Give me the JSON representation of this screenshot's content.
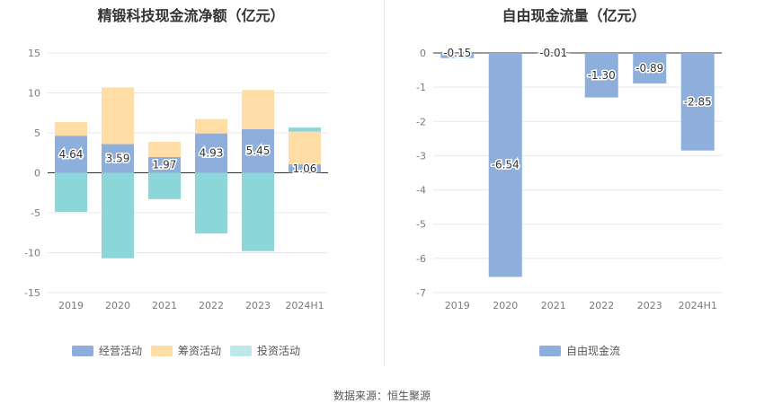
{
  "source_note": "数据来源：恒生聚源",
  "colors": {
    "operating": "#8EAEDC",
    "financing": "#FFDDA5",
    "investing": "#8AD6D8",
    "fcf": "#8EAEDC",
    "grid": "#E8E8E8",
    "axis": "#333333"
  },
  "chart_data": [
    {
      "type": "bar",
      "stacked": true,
      "title": "精锻科技现金流净额（亿元）",
      "categories": [
        "2019",
        "2020",
        "2021",
        "2022",
        "2023",
        "2024H1"
      ],
      "ylim": [
        -15,
        15
      ],
      "yticks": [
        15,
        10,
        5,
        0,
        -5,
        -10,
        -15
      ],
      "grid": true,
      "legend_position": "bottom",
      "series": [
        {
          "name": "经营活动",
          "values": [
            4.64,
            3.59,
            1.97,
            4.93,
            5.45,
            1.06
          ],
          "labels": [
            "4.64",
            "3.59",
            "1.97",
            "4.93",
            "5.45",
            "1.06"
          ]
        },
        {
          "name": "筹资活动",
          "values": [
            1.7,
            7.1,
            1.9,
            1.8,
            4.9,
            4.1
          ]
        },
        {
          "name": "投资活动",
          "values": [
            -4.9,
            -10.7,
            -3.3,
            -7.6,
            -9.8,
            0.5
          ]
        }
      ]
    },
    {
      "type": "bar",
      "title": "自由现金流量（亿元）",
      "categories": [
        "2019",
        "2020",
        "2021",
        "2022",
        "2023",
        "2024H1"
      ],
      "ylim": [
        -7,
        0
      ],
      "yticks": [
        0,
        -1,
        -2,
        -3,
        -4,
        -5,
        -6,
        -7
      ],
      "grid": true,
      "legend_position": "bottom",
      "series": [
        {
          "name": "自由现金流",
          "values": [
            -0.15,
            -6.54,
            -0.01,
            -1.3,
            -0.89,
            -2.85
          ],
          "labels": [
            "-0.15",
            "-6.54",
            "-0.01",
            "-1.30",
            "-0.89",
            "-2.85"
          ]
        }
      ]
    }
  ]
}
